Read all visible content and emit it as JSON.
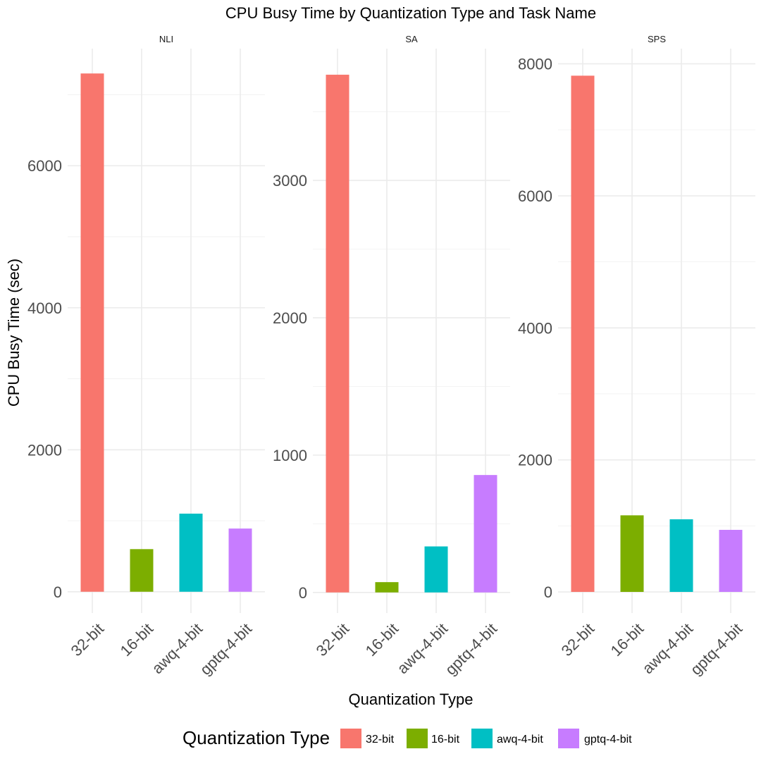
{
  "chart_data": {
    "type": "bar",
    "title": "CPU Busy Time by Quantization Type and Task Name",
    "xlabel": "Quantization Type",
    "ylabel": "CPU Busy Time (sec)",
    "categories": [
      "32-bit",
      "16-bit",
      "awq-4-bit",
      "gptq-4-bit"
    ],
    "colors": {
      "32-bit": "#F8766D",
      "16-bit": "#7CAE00",
      "awq-4-bit": "#00BFC4",
      "gptq-4-bit": "#C77CFF"
    },
    "legend": {
      "title": "Quantization Type",
      "placement": "bottom",
      "items": [
        "32-bit",
        "16-bit",
        "awq-4-bit",
        "gptq-4-bit"
      ]
    },
    "grid": true,
    "facets": [
      {
        "name": "NLI",
        "values": [
          7300,
          600,
          1100,
          890
        ],
        "ylim": [
          -300,
          7650
        ],
        "yticks": [
          0,
          2000,
          4000,
          6000
        ],
        "ytick_labels": [
          "0",
          "2000",
          "4000",
          "6000"
        ]
      },
      {
        "name": "SA",
        "values": [
          3770,
          75,
          335,
          855
        ],
        "ylim": [
          -150,
          3960
        ],
        "yticks": [
          0,
          1000,
          2000,
          3000
        ],
        "ytick_labels": [
          "0",
          "1000",
          "2000",
          "3000"
        ]
      },
      {
        "name": "SPS",
        "values": [
          7820,
          1160,
          1100,
          940
        ],
        "ylim": [
          -320,
          8230
        ],
        "yticks": [
          0,
          2000,
          4000,
          6000,
          8000
        ],
        "ytick_labels": [
          "0",
          "2000",
          "4000",
          "6000",
          "8000"
        ]
      }
    ]
  }
}
